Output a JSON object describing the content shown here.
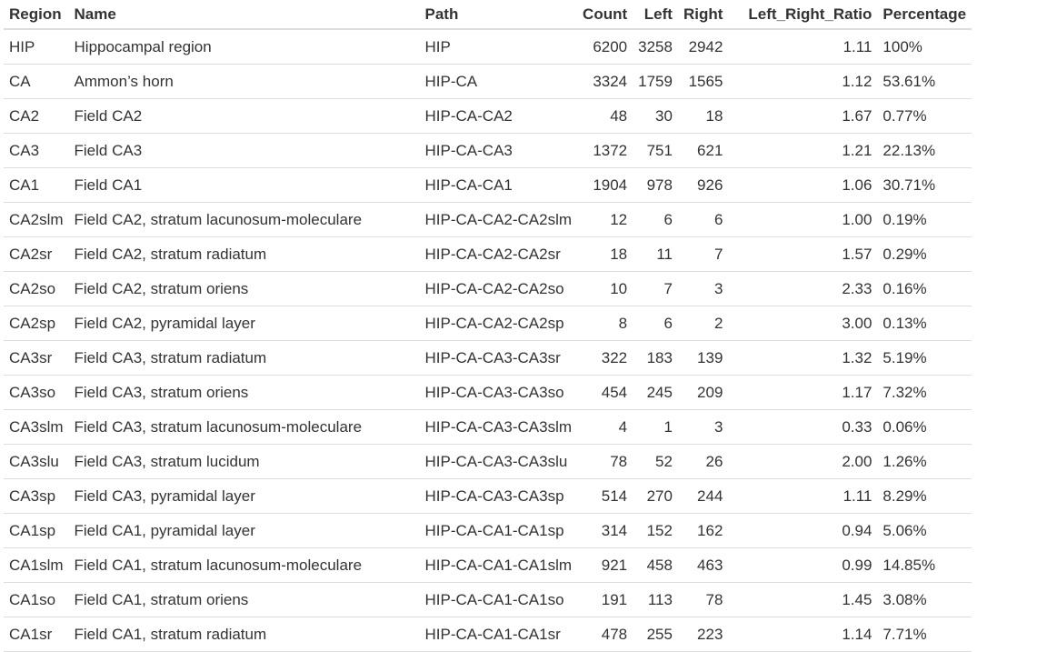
{
  "table": {
    "columns": [
      "Region",
      "Name",
      "Path",
      "Count",
      "Left",
      "Right",
      "Left_Right_Ratio",
      "Percentage"
    ],
    "rows": [
      [
        "HIP",
        "Hippocampal region",
        "HIP",
        "6200",
        "3258",
        "2942",
        "1.11",
        "100%"
      ],
      [
        "CA",
        "Ammon’s horn",
        "HIP-CA",
        "3324",
        "1759",
        "1565",
        "1.12",
        "53.61%"
      ],
      [
        "CA2",
        "Field CA2",
        "HIP-CA-CA2",
        "48",
        "30",
        "18",
        "1.67",
        "0.77%"
      ],
      [
        "CA3",
        "Field CA3",
        "HIP-CA-CA3",
        "1372",
        "751",
        "621",
        "1.21",
        "22.13%"
      ],
      [
        "CA1",
        "Field CA1",
        "HIP-CA-CA1",
        "1904",
        "978",
        "926",
        "1.06",
        "30.71%"
      ],
      [
        "CA2slm",
        "Field CA2, stratum lacunosum-moleculare",
        "HIP-CA-CA2-CA2slm",
        "12",
        "6",
        "6",
        "1.00",
        "0.19%"
      ],
      [
        "CA2sr",
        "Field CA2, stratum radiatum",
        "HIP-CA-CA2-CA2sr",
        "18",
        "11",
        "7",
        "1.57",
        "0.29%"
      ],
      [
        "CA2so",
        "Field CA2, stratum oriens",
        "HIP-CA-CA2-CA2so",
        "10",
        "7",
        "3",
        "2.33",
        "0.16%"
      ],
      [
        "CA2sp",
        "Field CA2, pyramidal layer",
        "HIP-CA-CA2-CA2sp",
        "8",
        "6",
        "2",
        "3.00",
        "0.13%"
      ],
      [
        "CA3sr",
        "Field CA3, stratum radiatum",
        "HIP-CA-CA3-CA3sr",
        "322",
        "183",
        "139",
        "1.32",
        "5.19%"
      ],
      [
        "CA3so",
        "Field CA3, stratum oriens",
        "HIP-CA-CA3-CA3so",
        "454",
        "245",
        "209",
        "1.17",
        "7.32%"
      ],
      [
        "CA3slm",
        "Field CA3, stratum lacunosum-moleculare",
        "HIP-CA-CA3-CA3slm",
        "4",
        "1",
        "3",
        "0.33",
        "0.06%"
      ],
      [
        "CA3slu",
        "Field CA3, stratum lucidum",
        "HIP-CA-CA3-CA3slu",
        "78",
        "52",
        "26",
        "2.00",
        "1.26%"
      ],
      [
        "CA3sp",
        "Field CA3, pyramidal layer",
        "HIP-CA-CA3-CA3sp",
        "514",
        "270",
        "244",
        "1.11",
        "8.29%"
      ],
      [
        "CA1sp",
        "Field CA1, pyramidal layer",
        "HIP-CA-CA1-CA1sp",
        "314",
        "152",
        "162",
        "0.94",
        "5.06%"
      ],
      [
        "CA1slm",
        "Field CA1, stratum lacunosum-moleculare",
        "HIP-CA-CA1-CA1slm",
        "921",
        "458",
        "463",
        "0.99",
        "14.85%"
      ],
      [
        "CA1so",
        "Field CA1, stratum oriens",
        "HIP-CA-CA1-CA1so",
        "191",
        "113",
        "78",
        "1.45",
        "3.08%"
      ],
      [
        "CA1sr",
        "Field CA1, stratum radiatum",
        "HIP-CA-CA1-CA1sr",
        "478",
        "255",
        "223",
        "1.14",
        "7.71%"
      ]
    ]
  }
}
